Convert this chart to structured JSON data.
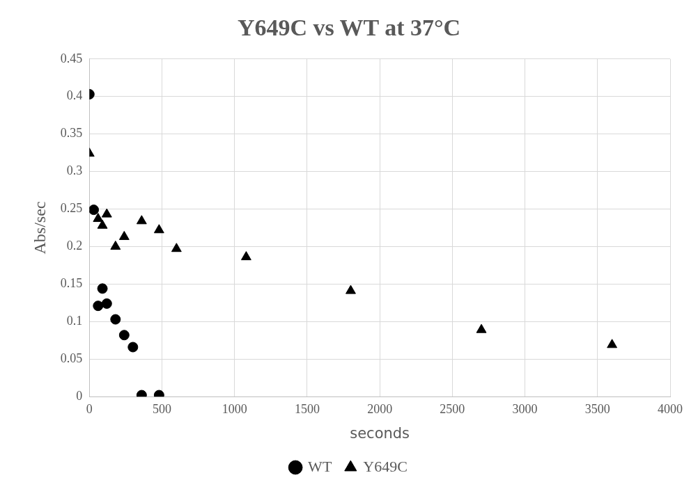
{
  "chart_data": {
    "type": "scatter",
    "title": "Y649C vs WT at 37°C",
    "xlabel": "seconds",
    "ylabel": "Abs/sec",
    "xlim": [
      0,
      4000
    ],
    "xticks": [
      0,
      500,
      1000,
      1500,
      2000,
      2500,
      3000,
      3500,
      4000
    ],
    "ylim": [
      0,
      0.45
    ],
    "yticks": [
      0,
      0.05,
      0.1,
      0.15,
      0.2,
      0.25,
      0.3,
      0.35,
      0.4,
      0.45
    ],
    "grid": true,
    "legend": "bottom",
    "series": [
      {
        "name": "WT",
        "color": "#000000",
        "marker": "circle",
        "x": [
          0,
          30,
          60,
          90,
          120,
          180,
          240,
          300,
          360,
          480
        ],
        "values": [
          0.403,
          0.249,
          0.121,
          0.144,
          0.124,
          0.103,
          0.082,
          0.066,
          0.002,
          0.002
        ]
      },
      {
        "name": "Y649C",
        "color": "#000000",
        "marker": "triangle",
        "x": [
          0,
          30,
          60,
          90,
          120,
          180,
          240,
          360,
          480,
          600,
          1080,
          1800,
          2700,
          3600
        ],
        "values": [
          0.324,
          null,
          0.237,
          0.228,
          0.243,
          0.2,
          0.213,
          0.234,
          0.222,
          0.197,
          0.186,
          0.141,
          0.089,
          0.069
        ]
      }
    ]
  }
}
